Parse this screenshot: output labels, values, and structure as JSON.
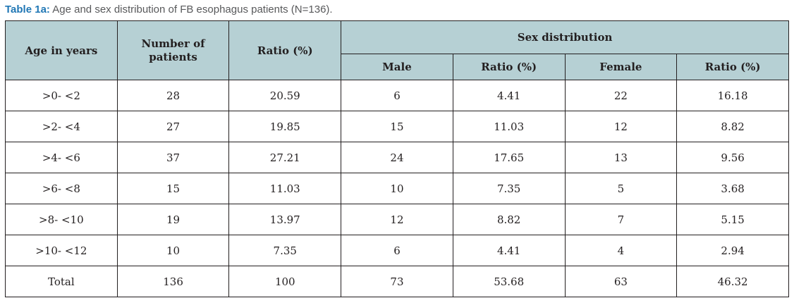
{
  "caption": {
    "label": "Table 1a:",
    "text": " Age and sex distribution of FB esophagus patients (N=136)."
  },
  "colors": {
    "caption_label": "#2077b5",
    "caption_text": "#58595b",
    "header_bg": "#b6d0d4",
    "border": "#231f20"
  },
  "chart_data": {
    "type": "table",
    "title": "Table 1a: Age and sex distribution of FB esophagus patients (N=136).",
    "columns": [
      "Age in years",
      "Number of patients",
      "Ratio (%)",
      "Male",
      "Ratio (%)",
      "Female",
      "Ratio (%)"
    ],
    "group_header": "Sex distribution",
    "rows": [
      [
        ">0- <2",
        28,
        20.59,
        6,
        4.41,
        22,
        16.18
      ],
      [
        ">2- <4",
        27,
        19.85,
        15,
        11.03,
        12,
        8.82
      ],
      [
        ">4- <6",
        37,
        27.21,
        24,
        17.65,
        13,
        9.56
      ],
      [
        ">6- <8",
        15,
        11.03,
        10,
        7.35,
        5,
        3.68
      ],
      [
        ">8- <10",
        19,
        13.97,
        12,
        8.82,
        7,
        5.15
      ],
      [
        ">10- <12",
        10,
        7.35,
        6,
        4.41,
        4,
        2.94
      ],
      [
        "Total",
        136,
        100,
        73,
        53.68,
        63,
        46.32
      ]
    ]
  },
  "table": {
    "header": {
      "age": "Age in years",
      "patients": "Number of patients",
      "ratio": "Ratio (%)",
      "sex_group": "Sex distribution",
      "male": "Male",
      "male_ratio": "Ratio (%)",
      "female": "Female",
      "female_ratio": "Ratio (%)"
    },
    "rows": [
      {
        "age": ">0- <2",
        "patients": "28",
        "ratio": "20.59",
        "male": "6",
        "male_ratio": "4.41",
        "female": "22",
        "female_ratio": "16.18"
      },
      {
        "age": ">2- <4",
        "patients": "27",
        "ratio": "19.85",
        "male": "15",
        "male_ratio": "11.03",
        "female": "12",
        "female_ratio": "8.82"
      },
      {
        "age": ">4- <6",
        "patients": "37",
        "ratio": "27.21",
        "male": "24",
        "male_ratio": "17.65",
        "female": "13",
        "female_ratio": "9.56"
      },
      {
        "age": ">6- <8",
        "patients": "15",
        "ratio": "11.03",
        "male": "10",
        "male_ratio": "7.35",
        "female": "5",
        "female_ratio": "3.68"
      },
      {
        "age": ">8- <10",
        "patients": "19",
        "ratio": "13.97",
        "male": "12",
        "male_ratio": "8.82",
        "female": "7",
        "female_ratio": "5.15"
      },
      {
        "age": ">10- <12",
        "patients": "10",
        "ratio": "7.35",
        "male": "6",
        "male_ratio": "4.41",
        "female": "4",
        "female_ratio": "2.94"
      },
      {
        "age": "Total",
        "patients": "136",
        "ratio": "100",
        "male": "73",
        "male_ratio": "53.68",
        "female": "63",
        "female_ratio": "46.32"
      }
    ]
  }
}
